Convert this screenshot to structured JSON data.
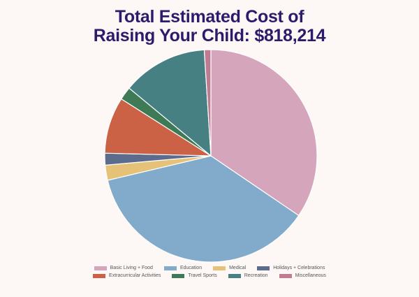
{
  "chart_data": {
    "type": "pie",
    "title_lines": [
      "Total Estimated Cost of",
      "Raising Your Child: $818,214"
    ],
    "slices": [
      {
        "label": "Basic Living + Food",
        "value": 34.5,
        "color": "#d5a5bb"
      },
      {
        "label": "Education",
        "value": 36.8,
        "color": "#82aaca"
      },
      {
        "label": "Medical",
        "value": 2.3,
        "color": "#e5c277"
      },
      {
        "label": "Holidays + Celebrations",
        "value": 1.8,
        "color": "#5d6c8c"
      },
      {
        "label": "Extracurricular Activities",
        "value": 8.6,
        "color": "#cc6245"
      },
      {
        "label": "Travel Sports",
        "value": 2.0,
        "color": "#3e7a55"
      },
      {
        "label": "Recreation",
        "value": 13.0,
        "color": "#468083"
      },
      {
        "label": "Miscellaneous",
        "value": 1.0,
        "color": "#bf7b91"
      }
    ],
    "legend_placement": "bottom"
  }
}
